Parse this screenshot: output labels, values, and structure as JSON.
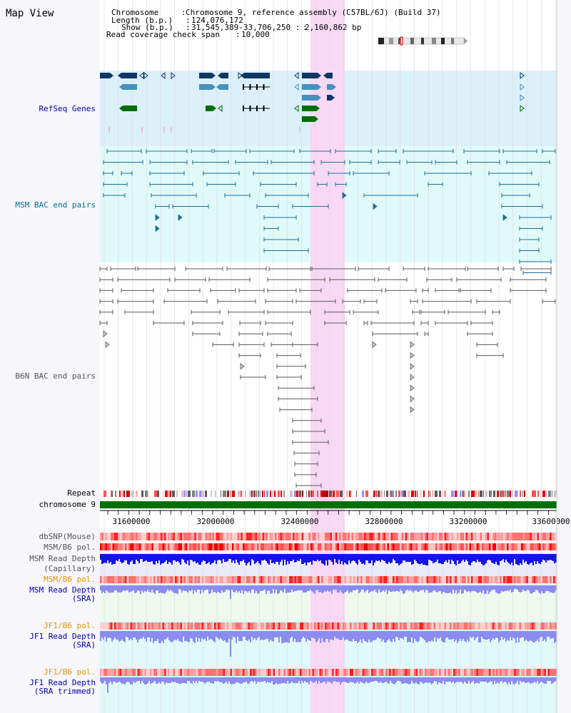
{
  "view_title": "Map View",
  "info": {
    "chromosome_key": "Chromosome",
    "chromosome_val": "Chromosome 9, reference assembly (C57BL/6J) (Build 37)",
    "length_key": "Length (b.p.)",
    "length_val": "124,076,172",
    "show_key": "Show (b.p.)",
    "show_val": "31,545,389-33,706,250 : 2,160,862 bp",
    "coverage_key": "Read coverage check span",
    "coverage_val": "10,000"
  },
  "tracks": {
    "refseq": "RefSeq Genes",
    "msm_bac": "MSM BAC end pairs",
    "b6n_bac": "B6N BAC end pairs",
    "repeat": "Repeat",
    "chromosome": "chromosome 9",
    "dbsnp": "dbSNP(Mouse)",
    "msm_b6_pol_1": "MSM/B6 pol.",
    "msm_depth_cap_1": "MSM Read Depth",
    "msm_depth_cap_2": "(Capillary)",
    "msm_b6_pol_2": "MSM/B6 pol.",
    "msm_depth_sra_1": "MSM Read Depth",
    "msm_depth_sra_2": "(SRA)",
    "jf1_b6_pol_1": "JF1/B6 pol.",
    "jf1_depth_sra_1": "JF1 Read Depth",
    "jf1_depth_sra_2": "(SRA)",
    "jf1_b6_pol_2": "JF1/B6 pol.",
    "jf1_depth_trim_1": "JF1 Read Depth",
    "jf1_depth_trim_2": "(SRA trimmed)"
  },
  "axis_ticks": [
    "31600000",
    "32000000",
    "32400000",
    "32800000",
    "33200000",
    "33600000"
  ],
  "colors": {
    "refseq_bg": "#dcf0fa",
    "bac_bg": "#e0fafa",
    "highlight": "#f8d8f4",
    "refseq_dark": "#0f3765",
    "refseq_mid": "#4690be",
    "refseq_green": "#006e00",
    "msm_line": "#1e6e96",
    "b6n_line": "#5a5a5a",
    "chrom_bar": "#007000",
    "label_blue": "#0000aa",
    "label_teal": "#006e8c",
    "label_orange": "#e69600",
    "label_gray": "#555555",
    "depth_cap": "#1414e6",
    "depth_sra": "#8c8cf0"
  }
}
